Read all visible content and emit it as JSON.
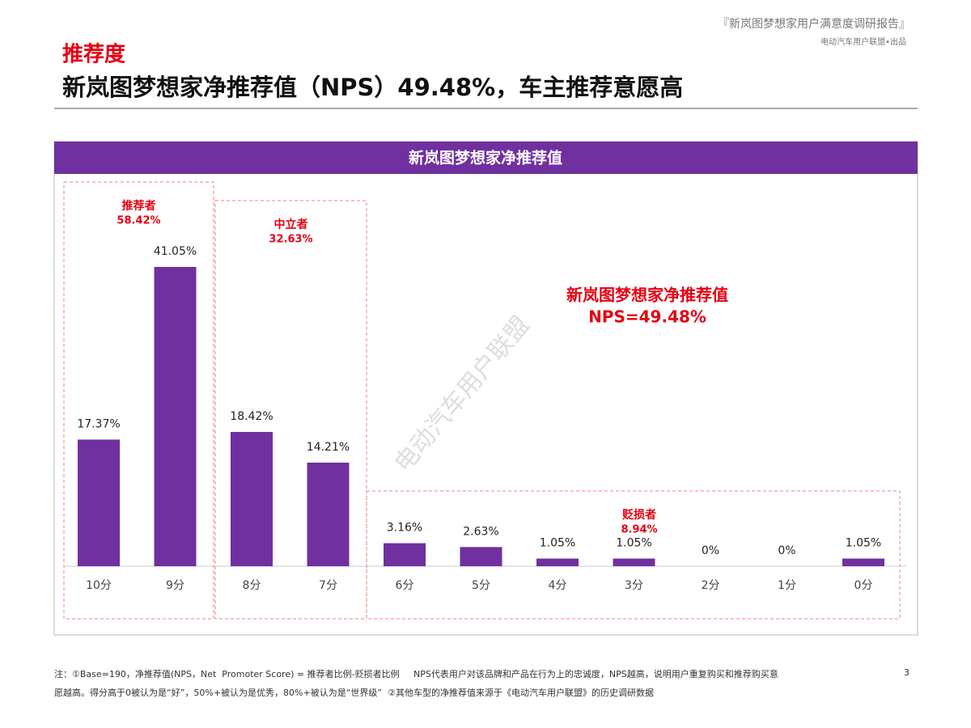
{
  "header": {
    "report": "『新岚图梦想家用户满意度调研报告』",
    "publisher": "电动汽车用户联盟•出品",
    "section": "推荐度",
    "title": "新岚图梦想家净推荐值（NPS）49.48%，车主推荐意愿高"
  },
  "chart_data": {
    "type": "bar",
    "title": "新岚图梦想家净推荐值",
    "categories": [
      "10分",
      "9分",
      "8分",
      "7分",
      "6分",
      "5分",
      "4分",
      "3分",
      "2分",
      "1分",
      "0分"
    ],
    "values": [
      17.37,
      41.05,
      18.42,
      14.21,
      3.16,
      2.63,
      1.05,
      1.05,
      0,
      0,
      1.05
    ],
    "value_labels": [
      "17.37%",
      "41.05%",
      "18.42%",
      "14.21%",
      "3.16%",
      "2.63%",
      "1.05%",
      "1.05%",
      "0%",
      "0%",
      "1.05%"
    ],
    "color": "#7030a0",
    "groups": [
      {
        "name": "推荐者",
        "value": 58.42,
        "value_label": "58.42%"
      },
      {
        "name": "中立者",
        "value": 32.63,
        "value_label": "32.63%"
      },
      {
        "name": "贬损者",
        "value": 8.94,
        "value_label": "8.94%"
      }
    ],
    "annotations": [
      "新岚图梦想家净推荐值",
      "NPS=49.48%"
    ],
    "watermark": "电动汽车用户联盟"
  },
  "footnote": {
    "lines": [
      "注：①Base=190，净推荐值(NPS，Net  Promoter Score) = 推荐者比例-贬损者比例     NPS代表用户对该品牌和产品在行为上的忠诚度，NPS越高，说明用户重复购买和推荐购买意",
      "愿越高。得分高于0被认为是“好”，50%+被认为是优秀，80%+被认为是“世界级”  ②其他车型的净推荐值来源于《电动汽车用户联盟》的历史调研数据"
    ],
    "page": "3"
  }
}
